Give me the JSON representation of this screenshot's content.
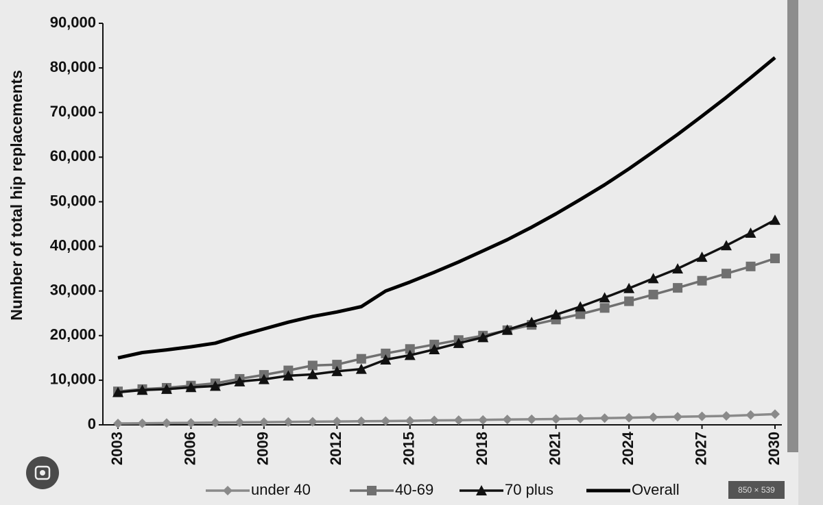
{
  "chart_data": {
    "type": "line",
    "y_label": "Number of total hip replacements",
    "x": [
      2003,
      2004,
      2005,
      2006,
      2007,
      2008,
      2009,
      2010,
      2011,
      2012,
      2013,
      2014,
      2015,
      2016,
      2017,
      2018,
      2019,
      2020,
      2021,
      2022,
      2023,
      2024,
      2025,
      2026,
      2027,
      2028,
      2029,
      2030
    ],
    "xlim": [
      2003,
      2030
    ],
    "xticks": [
      2003,
      2006,
      2009,
      2012,
      2015,
      2018,
      2021,
      2024,
      2027,
      2030
    ],
    "ylim": [
      0,
      90000
    ],
    "yticks": [
      0,
      {
        "value": 10000,
        "label": "10,000"
      },
      {
        "value": 20000,
        "label": "20,000"
      },
      {
        "value": 30000,
        "label": "30,000"
      },
      {
        "value": 40000,
        "label": "40,000"
      },
      {
        "value": 50000,
        "label": "50,000"
      },
      {
        "value": 60000,
        "label": "60,000"
      },
      {
        "value": 70000,
        "label": "70,000"
      },
      {
        "value": 80000,
        "label": "80,000"
      },
      {
        "value": 90000,
        "label": "90,000"
      }
    ],
    "grid": false,
    "legend": "bottom",
    "series": [
      {
        "name": "under 40",
        "color": "#8a8a8a",
        "marker": "diamond",
        "values": [
          300,
          350,
          400,
          450,
          500,
          550,
          600,
          650,
          700,
          750,
          800,
          850,
          900,
          1000,
          1050,
          1100,
          1200,
          1250,
          1300,
          1400,
          1500,
          1600,
          1700,
          1800,
          1900,
          2000,
          2200,
          2400
        ]
      },
      {
        "name": "40-69",
        "color": "#707070",
        "marker": "square",
        "values": [
          7500,
          8000,
          8300,
          8800,
          9300,
          10300,
          11200,
          12200,
          13300,
          13500,
          14800,
          16000,
          17000,
          18000,
          19000,
          20000,
          21200,
          22400,
          23600,
          24800,
          26200,
          27700,
          29200,
          30700,
          32300,
          33900,
          35500,
          37300
        ]
      },
      {
        "name": "70 plus",
        "color": "#111111",
        "marker": "triangle",
        "values": [
          7300,
          7800,
          8000,
          8400,
          8700,
          9700,
          10200,
          11000,
          11300,
          12000,
          12500,
          14600,
          15600,
          16900,
          18300,
          19600,
          21300,
          23000,
          24700,
          26500,
          28500,
          30600,
          32800,
          35000,
          37600,
          40200,
          43000,
          45900
        ]
      },
      {
        "name": "Overall",
        "color": "#000000",
        "marker": "none",
        "values": [
          15000,
          16200,
          16800,
          17500,
          18300,
          20000,
          21500,
          23000,
          24300,
          25300,
          26500,
          30000,
          32000,
          34200,
          36500,
          39000,
          41500,
          44300,
          47300,
          50500,
          53800,
          57400,
          61200,
          65100,
          69200,
          73400,
          77800,
          82300
        ]
      }
    ]
  },
  "badge": "850 × 539"
}
